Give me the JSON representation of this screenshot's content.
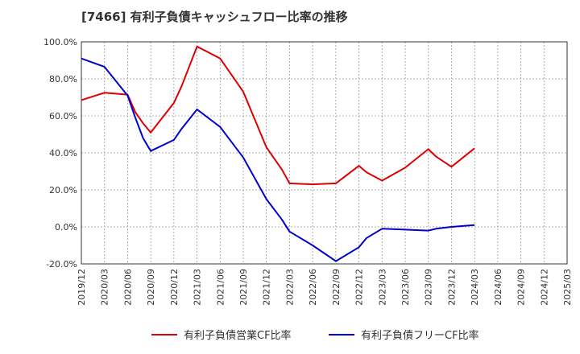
{
  "chart_data": {
    "type": "line",
    "title": "[7466]  有利子負債キャッシュフロー比率の推移",
    "xlabel": "",
    "ylabel": "",
    "ylim": [
      -20,
      100
    ],
    "yticks": [
      -20,
      0,
      20,
      40,
      60,
      80,
      100
    ],
    "ytick_labels": [
      "-20.0%",
      "0.0%",
      "20.0%",
      "40.0%",
      "60.0%",
      "80.0%",
      "100.0%"
    ],
    "x_ticks": [
      "2019/12",
      "2020/03",
      "2020/06",
      "2020/09",
      "2020/12",
      "2021/03",
      "2021/06",
      "2021/09",
      "2021/12",
      "2022/03",
      "2022/06",
      "2022/09",
      "2022/12",
      "2023/03",
      "2023/06",
      "2023/09",
      "2023/12",
      "2024/03",
      "2024/06",
      "2024/09",
      "2024/12",
      "2025/03"
    ],
    "grid": true,
    "legend_position": "bottom",
    "series": [
      {
        "name": "有利子負債営業CF比率",
        "color": "#dd0000",
        "points": [
          [
            "2019/12",
            68.5
          ],
          [
            "2020/03",
            72.5
          ],
          [
            "2020/06",
            71.5
          ],
          [
            "2020/07",
            62.0
          ],
          [
            "2020/08",
            56.0
          ],
          [
            "2020/09",
            51.0
          ],
          [
            "2020/12",
            67.0
          ],
          [
            "2021/01",
            76.0
          ],
          [
            "2021/03",
            97.5
          ],
          [
            "2021/06",
            91.0
          ],
          [
            "2021/09",
            73.0
          ],
          [
            "2021/12",
            43.0
          ],
          [
            "2022/02",
            31.0
          ],
          [
            "2022/03",
            23.5
          ],
          [
            "2022/06",
            23.0
          ],
          [
            "2022/09",
            23.5
          ],
          [
            "2022/12",
            33.0
          ],
          [
            "2023/01",
            29.5
          ],
          [
            "2023/03",
            25.0
          ],
          [
            "2023/06",
            32.0
          ],
          [
            "2023/09",
            42.0
          ],
          [
            "2023/10",
            38.0
          ],
          [
            "2023/12",
            32.5
          ],
          [
            "2024/03",
            42.5
          ]
        ]
      },
      {
        "name": "有利子負債フリーCF比率",
        "color": "#0000cc",
        "points": [
          [
            "2019/12",
            91.0
          ],
          [
            "2020/03",
            86.5
          ],
          [
            "2020/06",
            71.0
          ],
          [
            "2020/07",
            59.0
          ],
          [
            "2020/08",
            48.0
          ],
          [
            "2020/09",
            41.0
          ],
          [
            "2020/12",
            47.0
          ],
          [
            "2021/01",
            53.0
          ],
          [
            "2021/03",
            63.5
          ],
          [
            "2021/06",
            54.0
          ],
          [
            "2021/09",
            37.5
          ],
          [
            "2021/12",
            15.0
          ],
          [
            "2022/02",
            4.0
          ],
          [
            "2022/03",
            -2.5
          ],
          [
            "2022/06",
            -10.0
          ],
          [
            "2022/09",
            -18.5
          ],
          [
            "2022/12",
            -11.0
          ],
          [
            "2023/01",
            -6.0
          ],
          [
            "2023/03",
            -1.0
          ],
          [
            "2023/06",
            -1.5
          ],
          [
            "2023/09",
            -2.0
          ],
          [
            "2023/10",
            -1.0
          ],
          [
            "2023/12",
            0.0
          ],
          [
            "2024/03",
            1.0
          ]
        ]
      }
    ]
  }
}
